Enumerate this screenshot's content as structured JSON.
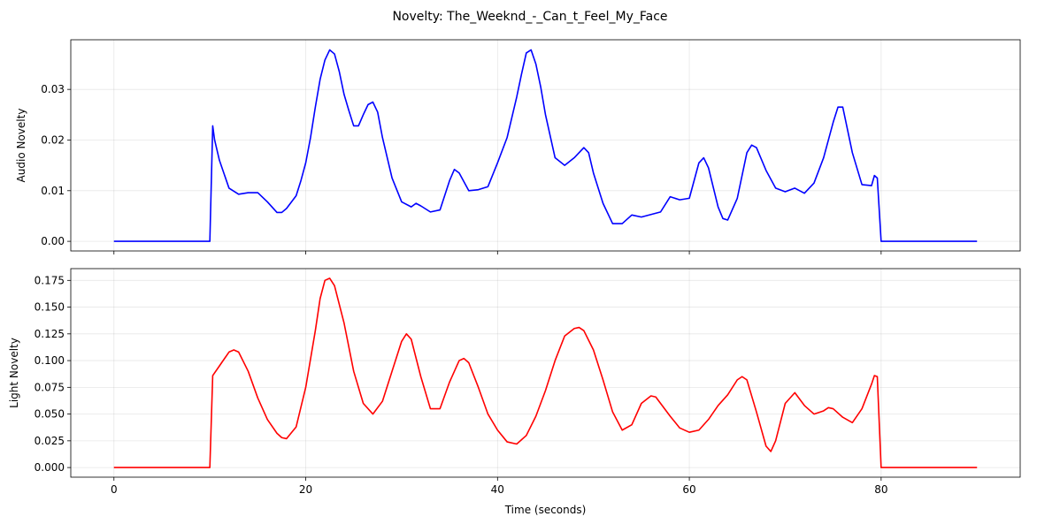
{
  "figure_title": "Novelty: The_Weeknd_-_Can_t_Feel_My_Face",
  "chart_data": [
    {
      "type": "line",
      "ylabel": "Audio Novelty",
      "xlabel": "",
      "xlim": [
        -4.5,
        94.5
      ],
      "ylim": [
        -0.0019,
        0.0398
      ],
      "xticks": [
        0,
        20,
        40,
        60,
        80
      ],
      "xtick_labels": [
        "",
        "",
        "",
        "",
        ""
      ],
      "yticks": [
        0,
        0.01,
        0.02,
        0.03
      ],
      "ytick_labels": [
        "0.00",
        "0.01",
        "0.02",
        "0.03"
      ],
      "grid": true,
      "series": [
        {
          "color": "#0000ff",
          "x": [
            0,
            10,
            10.3,
            10.5,
            11,
            12,
            13,
            14,
            15,
            16,
            17,
            17.5,
            18,
            19,
            19.5,
            20,
            20.5,
            21,
            21.5,
            22,
            22.5,
            23,
            23.5,
            24,
            24.5,
            25,
            25.5,
            26,
            26.5,
            27,
            27.5,
            28,
            29,
            30,
            31,
            31.5,
            32,
            33,
            34,
            35,
            35.5,
            36,
            37,
            38,
            39,
            40,
            41,
            42,
            42.5,
            43,
            43.5,
            44,
            44.5,
            45,
            46,
            47,
            48,
            49,
            49.5,
            50,
            51,
            52,
            53,
            54,
            55,
            56,
            57,
            58,
            59,
            60,
            61,
            61.5,
            62,
            63,
            63.5,
            64,
            65,
            66,
            66.5,
            67,
            68,
            69,
            70,
            71,
            72,
            73,
            74,
            75,
            75.5,
            76,
            77,
            78,
            79,
            79.3,
            79.6,
            80,
            90
          ],
          "values": [
            0,
            0,
            0.0228,
            0.02,
            0.016,
            0.0105,
            0.0093,
            0.0096,
            0.0096,
            0.0078,
            0.0057,
            0.0057,
            0.0065,
            0.009,
            0.012,
            0.0155,
            0.0205,
            0.0265,
            0.032,
            0.0358,
            0.0378,
            0.037,
            0.0335,
            0.029,
            0.0258,
            0.0228,
            0.0228,
            0.025,
            0.027,
            0.0275,
            0.0255,
            0.0205,
            0.0125,
            0.0078,
            0.0068,
            0.0075,
            0.007,
            0.0058,
            0.0062,
            0.012,
            0.0142,
            0.0135,
            0.01,
            0.0102,
            0.0108,
            0.0155,
            0.0205,
            0.0285,
            0.033,
            0.0372,
            0.0378,
            0.035,
            0.0305,
            0.025,
            0.0165,
            0.015,
            0.0165,
            0.0185,
            0.0175,
            0.0135,
            0.0075,
            0.0035,
            0.0035,
            0.0052,
            0.0048,
            0.0053,
            0.0058,
            0.0088,
            0.0082,
            0.0085,
            0.0155,
            0.0165,
            0.0145,
            0.0068,
            0.0045,
            0.0042,
            0.0085,
            0.0175,
            0.019,
            0.0185,
            0.014,
            0.0105,
            0.0098,
            0.0105,
            0.0095,
            0.0115,
            0.0165,
            0.0235,
            0.0265,
            0.0265,
            0.0175,
            0.0112,
            0.011,
            0.013,
            0.0125,
            0,
            0
          ]
        }
      ]
    },
    {
      "type": "line",
      "ylabel": "Light Novelty",
      "xlabel": "Time (seconds)",
      "xlim": [
        -4.5,
        94.5
      ],
      "ylim": [
        -0.009,
        0.186
      ],
      "xticks": [
        0,
        20,
        40,
        60,
        80
      ],
      "xtick_labels": [
        "0",
        "20",
        "40",
        "60",
        "80"
      ],
      "yticks": [
        0,
        0.025,
        0.05,
        0.075,
        0.1,
        0.125,
        0.15,
        0.175
      ],
      "ytick_labels": [
        "0.000",
        "0.025",
        "0.050",
        "0.075",
        "0.100",
        "0.125",
        "0.150",
        "0.175"
      ],
      "grid": true,
      "series": [
        {
          "color": "#ff0000",
          "x": [
            0,
            10,
            10.3,
            11,
            12,
            12.5,
            13,
            14,
            15,
            16,
            17,
            17.5,
            18,
            19,
            20,
            21,
            21.5,
            22,
            22.5,
            23,
            24,
            25,
            26,
            27,
            28,
            29,
            30,
            30.5,
            31,
            32,
            33,
            34,
            35,
            36,
            36.5,
            37,
            38,
            39,
            40,
            41,
            42,
            43,
            44,
            45,
            46,
            47,
            48,
            48.5,
            49,
            50,
            51,
            52,
            53,
            54,
            55,
            56,
            56.5,
            57,
            58,
            59,
            60,
            61,
            62,
            63,
            64,
            65,
            65.5,
            66,
            67,
            68,
            68.5,
            69,
            70,
            71,
            72,
            73,
            74,
            74.5,
            75,
            76,
            77,
            78,
            79,
            79.3,
            79.6,
            80,
            90
          ],
          "values": [
            0,
            0,
            0.086,
            0.095,
            0.108,
            0.11,
            0.108,
            0.09,
            0.065,
            0.045,
            0.032,
            0.028,
            0.027,
            0.038,
            0.075,
            0.128,
            0.158,
            0.175,
            0.177,
            0.17,
            0.135,
            0.09,
            0.06,
            0.05,
            0.062,
            0.09,
            0.118,
            0.125,
            0.12,
            0.085,
            0.055,
            0.055,
            0.08,
            0.1,
            0.102,
            0.098,
            0.075,
            0.05,
            0.035,
            0.024,
            0.022,
            0.03,
            0.048,
            0.072,
            0.1,
            0.123,
            0.13,
            0.131,
            0.128,
            0.11,
            0.082,
            0.052,
            0.035,
            0.04,
            0.06,
            0.067,
            0.066,
            0.06,
            0.048,
            0.037,
            0.033,
            0.035,
            0.045,
            0.058,
            0.068,
            0.082,
            0.085,
            0.082,
            0.052,
            0.02,
            0.015,
            0.025,
            0.06,
            0.07,
            0.058,
            0.05,
            0.053,
            0.056,
            0.055,
            0.047,
            0.042,
            0.055,
            0.078,
            0.086,
            0.085,
            0,
            0
          ]
        }
      ]
    }
  ]
}
